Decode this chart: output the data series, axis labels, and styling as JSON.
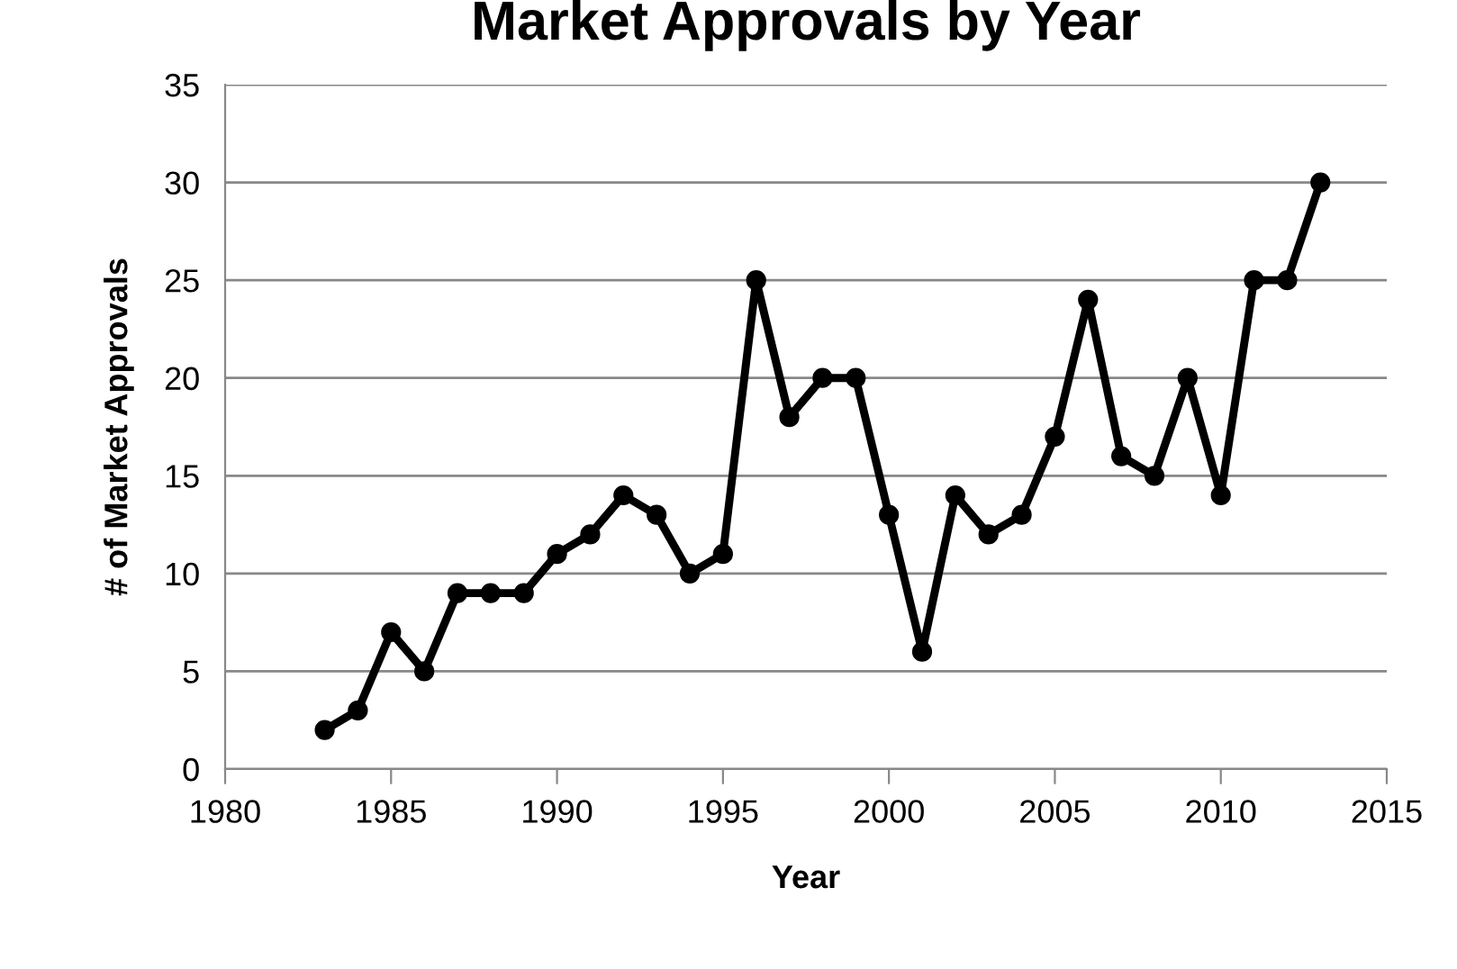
{
  "chart_data": {
    "type": "line",
    "title": "Market Approvals by Year",
    "xlabel": "Year",
    "ylabel": "# of Market Approvals",
    "x": [
      1983,
      1984,
      1985,
      1986,
      1987,
      1988,
      1989,
      1990,
      1991,
      1992,
      1993,
      1994,
      1995,
      1996,
      1997,
      1998,
      1999,
      2000,
      2001,
      2002,
      2003,
      2004,
      2005,
      2006,
      2007,
      2008,
      2009,
      2010,
      2011,
      2012,
      2013
    ],
    "series": [
      {
        "color": "#000000",
        "values": [
          2,
          3,
          7,
          5,
          9,
          9,
          9,
          11,
          12,
          14,
          13,
          10,
          11,
          25,
          18,
          20,
          20,
          13,
          6,
          14,
          12,
          13,
          17,
          24,
          16,
          15,
          20,
          14,
          25,
          25,
          30
        ]
      }
    ],
    "xlim": [
      1980,
      2015
    ],
    "xticks": [
      1980,
      1985,
      1990,
      1995,
      2000,
      2005,
      2010,
      2015
    ],
    "ylim": [
      0,
      35
    ],
    "yticks": [
      0,
      5,
      10,
      15,
      20,
      25,
      30,
      35
    ],
    "grid": "y",
    "legend": false,
    "marker": "circle",
    "line_style": "solid"
  }
}
